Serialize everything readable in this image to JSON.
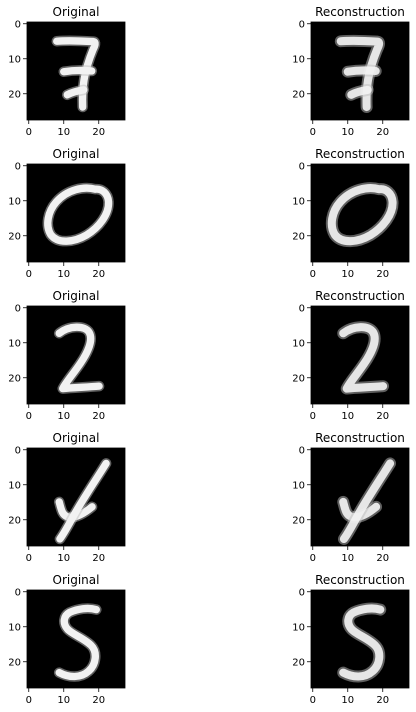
{
  "chart_data": {
    "type": "image-grid",
    "column_titles": [
      "Original",
      "Reconstruction"
    ],
    "xticks": [
      "0",
      "10",
      "20"
    ],
    "yticks": [
      "0",
      "10",
      "20"
    ],
    "xlim": [
      -0.5,
      27.5
    ],
    "ylim": [
      27.5,
      -0.5
    ],
    "background_color": "#000000",
    "digit_color": "#f2f2f2",
    "rows": [
      {
        "digit": "7"
      },
      {
        "digit": "0"
      },
      {
        "digit": "2"
      },
      {
        "digit": "4"
      },
      {
        "digit": "5"
      }
    ]
  }
}
